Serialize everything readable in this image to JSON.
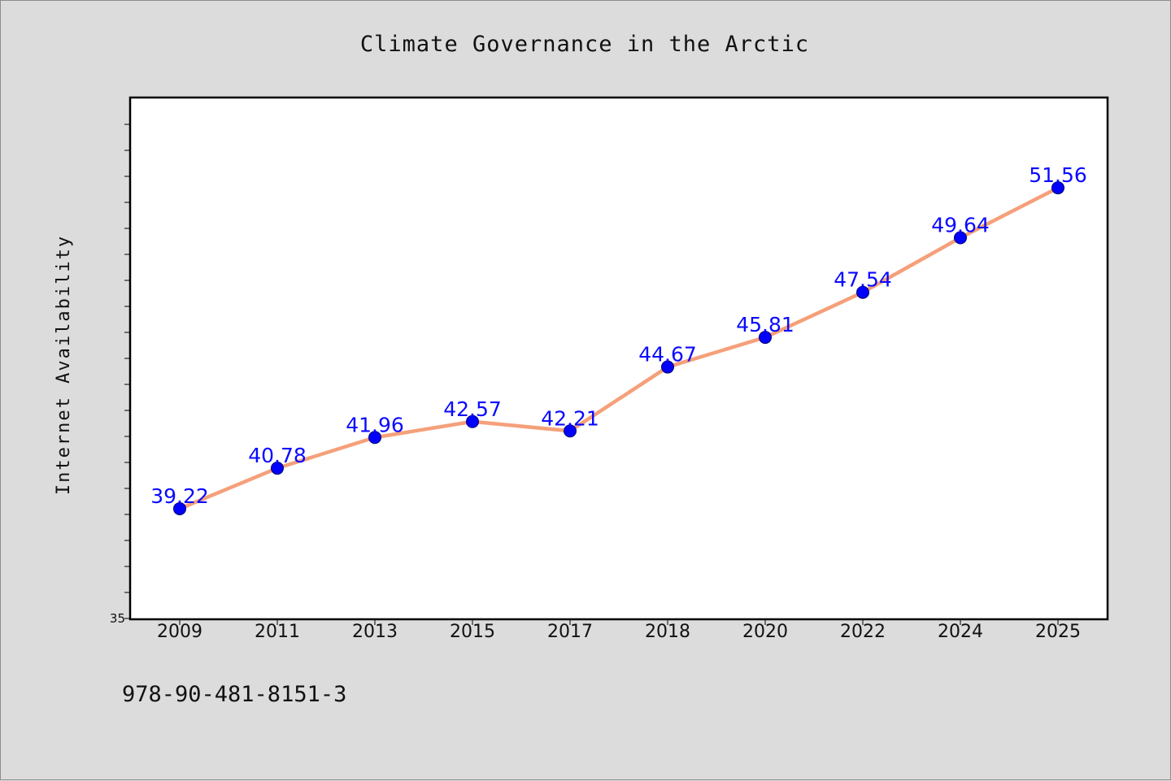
{
  "footer_text": "978-90-481-8151-3",
  "colors": {
    "background": "#dcdcdc",
    "plot_background": "#ffffff",
    "line": "#f5a07a",
    "marker": "#0000ff",
    "data_label": "#0a0aff"
  },
  "chart_data": {
    "type": "line",
    "title": "Climate Governance in the Arctic",
    "xlabel": "",
    "ylabel": "Internet Availability",
    "categories": [
      "2009",
      "2011",
      "2013",
      "2015",
      "2017",
      "2018",
      "2020",
      "2022",
      "2024",
      "2025"
    ],
    "series": [
      {
        "values": [
          39.22,
          40.78,
          41.96,
          42.57,
          42.21,
          44.67,
          45.81,
          47.54,
          49.64,
          51.56
        ],
        "data_labels": [
          "39.22",
          "40.78",
          "41.96",
          "42.57",
          "42.21",
          "44.67",
          "45.81",
          "47.54",
          "49.64",
          "51.56"
        ]
      }
    ],
    "ylim": [
      35,
      55
    ],
    "y_tick_labels": [
      "35"
    ],
    "y_minor_step": 1,
    "grid": false,
    "legend": "none"
  }
}
